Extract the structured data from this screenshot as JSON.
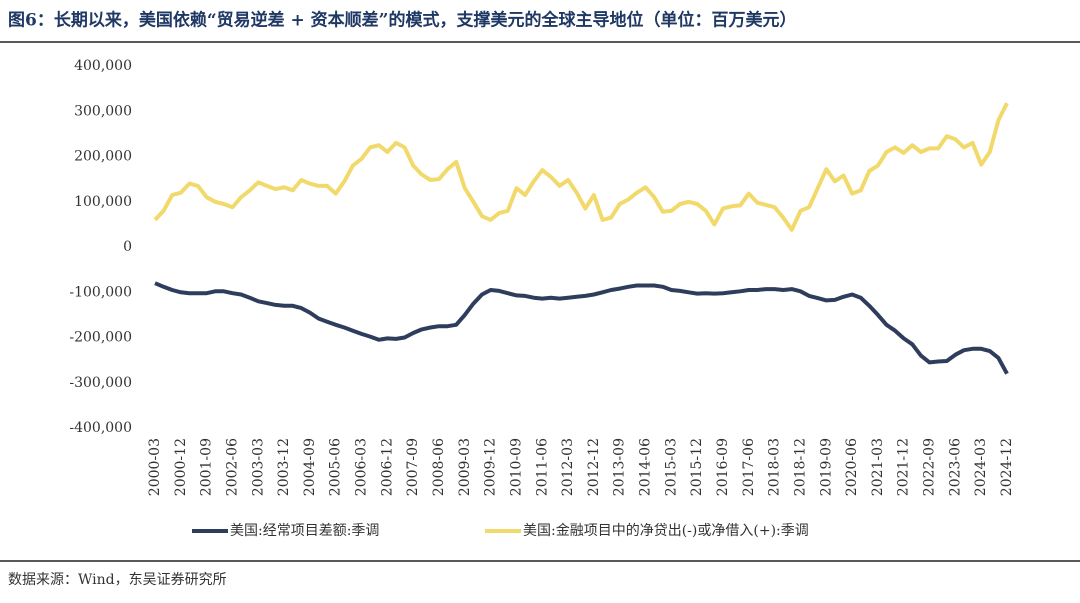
{
  "header": {
    "title": "图6：长期以来，美国依赖“贸易逆差 + 资本顺差”的模式，支撑美元的全球主导地位（单位：百万美元）"
  },
  "chart_data": {
    "type": "line",
    "categories": [
      "2000-03",
      null,
      null,
      "2000-12",
      null,
      null,
      "2001-09",
      null,
      null,
      "2002-06",
      null,
      null,
      "2003-03",
      null,
      null,
      "2003-12",
      null,
      null,
      "2004-09",
      null,
      null,
      "2005-06",
      null,
      null,
      "2006-03",
      null,
      null,
      "2006-12",
      null,
      null,
      "2007-09",
      null,
      null,
      "2008-06",
      null,
      null,
      "2009-03",
      null,
      null,
      "2009-12",
      null,
      null,
      "2010-09",
      null,
      null,
      "2011-06",
      null,
      null,
      "2012-03",
      null,
      null,
      "2012-12",
      null,
      null,
      "2013-09",
      null,
      null,
      "2014-06",
      null,
      null,
      "2015-03",
      null,
      null,
      "2015-12",
      null,
      null,
      "2016-09",
      null,
      null,
      "2017-06",
      null,
      null,
      "2018-03",
      null,
      null,
      "2018-12",
      null,
      null,
      "2019-09",
      null,
      null,
      "2020-06",
      null,
      null,
      "2021-03",
      null,
      null,
      "2021-12",
      null,
      null,
      "2022-09",
      null,
      null,
      "2023-06",
      null,
      null,
      "2024-03",
      null,
      null,
      "2024-12"
    ],
    "series": [
      {
        "name": "美国:经常项目差额:季调",
        "color": "#2e3d5c",
        "values": [
          -80000,
          -88000,
          -95000,
          -100000,
          -102000,
          -102000,
          -102000,
          -98000,
          -98000,
          -102000,
          -105000,
          -112000,
          -120000,
          -124000,
          -128000,
          -130000,
          -130000,
          -135000,
          -145000,
          -158000,
          -165000,
          -172000,
          -178000,
          -185000,
          -192000,
          -198000,
          -205000,
          -202000,
          -203000,
          -200000,
          -190000,
          -182000,
          -178000,
          -175000,
          -175000,
          -172000,
          -150000,
          -125000,
          -105000,
          -95000,
          -97000,
          -102000,
          -107000,
          -108000,
          -112000,
          -114000,
          -112000,
          -114000,
          -112000,
          -110000,
          -108000,
          -105000,
          -100000,
          -95000,
          -92000,
          -88000,
          -85000,
          -85000,
          -85000,
          -88000,
          -95000,
          -97000,
          -100000,
          -103000,
          -102000,
          -103000,
          -102000,
          -100000,
          -98000,
          -95000,
          -95000,
          -93000,
          -93000,
          -95000,
          -93000,
          -98000,
          -108000,
          -113000,
          -118000,
          -117000,
          -110000,
          -105000,
          -112000,
          -130000,
          -150000,
          -172000,
          -185000,
          -202000,
          -215000,
          -240000,
          -255000,
          -253000,
          -252000,
          -238000,
          -228000,
          -225000,
          -225000,
          -230000,
          -245000,
          -280000
        ]
      },
      {
        "name": "美国:金融项目中的净贷出(-)或净借入(+):季调",
        "color": "#f2d96b",
        "values": [
          60000,
          80000,
          115000,
          120000,
          140000,
          135000,
          110000,
          100000,
          95000,
          88000,
          110000,
          125000,
          143000,
          135000,
          128000,
          132000,
          125000,
          148000,
          140000,
          135000,
          135000,
          118000,
          145000,
          180000,
          195000,
          220000,
          225000,
          210000,
          230000,
          220000,
          180000,
          160000,
          148000,
          150000,
          172000,
          188000,
          130000,
          100000,
          68000,
          60000,
          75000,
          80000,
          130000,
          115000,
          145000,
          170000,
          155000,
          135000,
          148000,
          120000,
          85000,
          115000,
          60000,
          65000,
          95000,
          105000,
          120000,
          132000,
          110000,
          78000,
          80000,
          95000,
          100000,
          95000,
          80000,
          50000,
          85000,
          90000,
          92000,
          118000,
          98000,
          93000,
          88000,
          65000,
          38000,
          80000,
          88000,
          130000,
          172000,
          145000,
          158000,
          118000,
          125000,
          168000,
          180000,
          210000,
          220000,
          208000,
          225000,
          210000,
          218000,
          218000,
          245000,
          238000,
          220000,
          230000,
          182000,
          210000,
          280000,
          318000
        ]
      }
    ],
    "ylim": [
      -400000,
      400000
    ],
    "yticks": [
      {
        "value": -400000,
        "label": "-400,000"
      },
      {
        "value": -300000,
        "label": "-300,000"
      },
      {
        "value": -200000,
        "label": "-200,000"
      },
      {
        "value": -100000,
        "label": "-100,000"
      },
      0,
      {
        "value": 100000,
        "label": "100,000"
      },
      {
        "value": 200000,
        "label": "200,000"
      },
      {
        "value": 300000,
        "label": "300,000"
      },
      {
        "value": 400000,
        "label": "400,000"
      }
    ],
    "legend": "bottom"
  },
  "footer": {
    "source": "数据来源：Wind，东吴证券研究所"
  }
}
